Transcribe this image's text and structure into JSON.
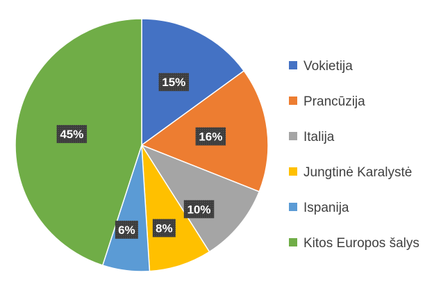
{
  "chart_data": {
    "type": "pie",
    "categories": [
      "Vokietija",
      "Prancūzija",
      "Italija",
      "Jungtinė Karalystė",
      "Ispanija",
      "Kitos Europos šalys"
    ],
    "values": [
      15,
      16,
      10,
      8,
      6,
      45
    ],
    "labels": [
      "15%",
      "16%",
      "10%",
      "8%",
      "6%",
      "45%"
    ],
    "colors": [
      "#4472C4",
      "#ED7D31",
      "#A5A5A5",
      "#FFC000",
      "#5B9BD5",
      "#70AD47"
    ],
    "legend_position": "right",
    "title": "",
    "start_angle": "top",
    "direction": "clockwise"
  }
}
